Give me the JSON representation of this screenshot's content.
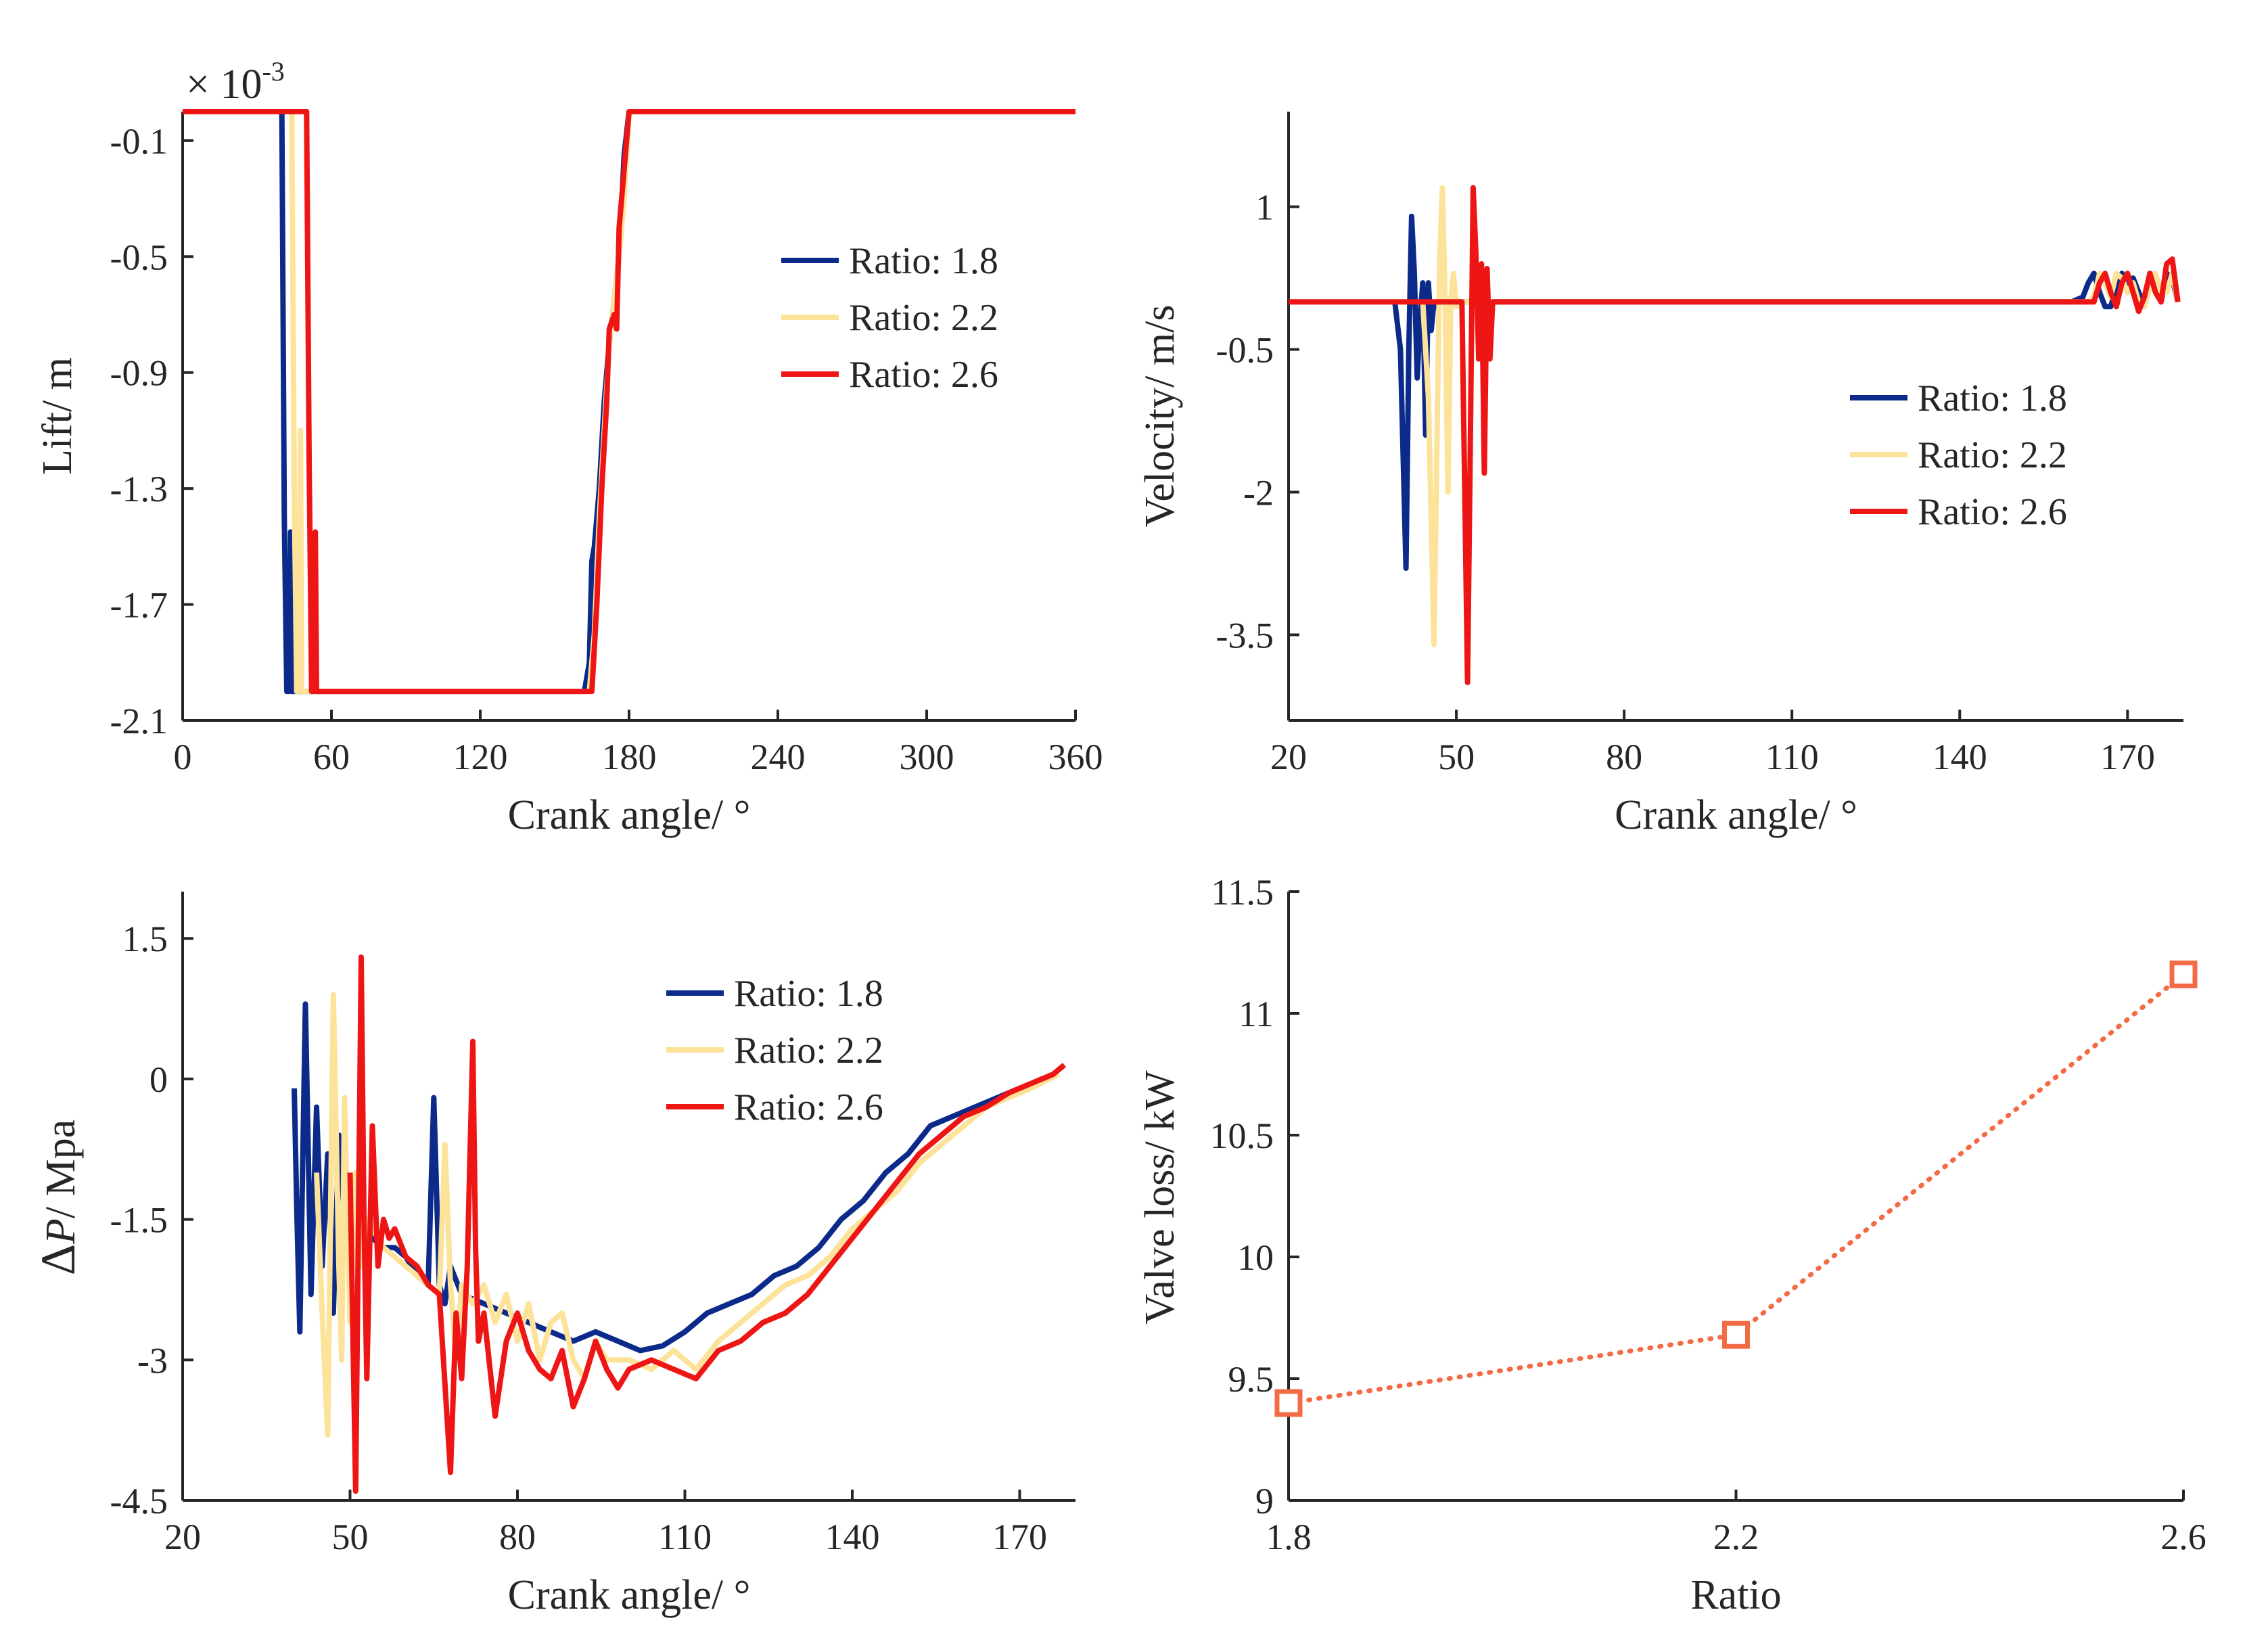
{
  "colors": {
    "r18": "#0b2a8a",
    "r22": "#fde29a",
    "r26": "#ee1515",
    "loss": "#f36b45",
    "axis": "#262626"
  },
  "legend_labels": [
    "Ratio: 1.8",
    "Ratio: 2.2",
    "Ratio: 2.6"
  ],
  "chart_data": [
    {
      "id": "lift",
      "type": "line",
      "xlabel": "Crank angle/ °",
      "ylabel": "Lift/ m",
      "exponent_label": "× 10",
      "exponent_power": "-3",
      "xlim": [
        0,
        360
      ],
      "ylim": [
        -2.1,
        0.0
      ],
      "xticks": [
        "0",
        "60",
        "120",
        "180",
        "240",
        "300",
        "360"
      ],
      "yticks": [
        "-0.1",
        "-0.5",
        "-0.9",
        "-1.3",
        "-1.7",
        "-2.1"
      ],
      "legend_position": "top-right",
      "series": [
        {
          "name": "Ratio: 1.8",
          "color_key": "r18",
          "x": [
            0,
            40,
            41,
            42,
            43,
            43.5,
            44,
            45,
            48,
            160,
            162,
            164,
            165,
            166,
            168,
            170,
            172,
            174,
            176,
            178,
            180,
            360
          ],
          "y": [
            0.0,
            0.0,
            -1.4,
            -2.0,
            -2.0,
            -1.45,
            -2.0,
            -2.0,
            -2.0,
            -2.0,
            -2.0,
            -1.9,
            -1.55,
            -1.5,
            -1.3,
            -1.0,
            -0.8,
            -0.65,
            -0.5,
            -0.15,
            0.0,
            0.0
          ]
        },
        {
          "name": "Ratio: 2.2",
          "color_key": "r22",
          "x": [
            0,
            44,
            45,
            46,
            47,
            47.5,
            48,
            49,
            52,
            162,
            164,
            166,
            168,
            170,
            172,
            174,
            176,
            178,
            180,
            360
          ],
          "y": [
            0.0,
            0.0,
            -1.3,
            -2.0,
            -2.0,
            -1.1,
            -2.0,
            -2.0,
            -2.0,
            -2.0,
            -2.0,
            -1.8,
            -1.4,
            -1.1,
            -0.8,
            -0.65,
            -0.5,
            -0.3,
            0.0,
            0.0
          ]
        },
        {
          "name": "Ratio: 2.6",
          "color_key": "r26",
          "x": [
            0,
            50,
            51,
            52,
            53,
            53.5,
            54,
            55,
            58,
            163,
            165,
            167,
            169,
            171,
            172,
            174,
            175,
            176,
            178,
            180,
            360
          ],
          "y": [
            0.0,
            0.0,
            -1.2,
            -2.0,
            -2.0,
            -1.45,
            -2.0,
            -2.0,
            -2.0,
            -2.0,
            -2.0,
            -1.7,
            -1.3,
            -1.0,
            -0.75,
            -0.7,
            -0.75,
            -0.4,
            -0.2,
            0.0,
            0.0
          ]
        }
      ]
    },
    {
      "id": "velocity",
      "type": "line",
      "xlabel": "Crank angle/ °",
      "ylabel": "Velocity/ m/s",
      "xlim": [
        20,
        180
      ],
      "ylim": [
        -4.4,
        2.0
      ],
      "xticks": [
        "20",
        "50",
        "80",
        "110",
        "140",
        "170"
      ],
      "yticks": [
        "1",
        "-0.5",
        "-2",
        "-3.5"
      ],
      "legend_position": "right",
      "series": [
        {
          "name": "Ratio: 1.8",
          "color_key": "r18",
          "x": [
            39,
            40,
            41,
            41.5,
            42,
            42.5,
            43,
            43.5,
            44,
            44.5,
            45,
            45.5,
            46,
            46.5,
            47,
            48,
            160,
            162,
            163,
            164,
            165,
            166,
            167,
            168,
            169,
            170,
            171,
            172,
            173,
            174,
            175,
            176,
            177,
            178,
            179
          ],
          "y": [
            0.0,
            -0.5,
            -2.8,
            -0.5,
            0.9,
            0.3,
            -0.8,
            -0.2,
            0.2,
            -1.4,
            0.2,
            -0.3,
            0.0,
            -0.05,
            0.0,
            0.0,
            0.0,
            0.05,
            0.2,
            0.3,
            0.1,
            -0.05,
            -0.05,
            0.15,
            0.3,
            0.1,
            0.25,
            0.1,
            -0.05,
            0.3,
            0.2,
            0.0,
            0.3,
            0.25,
            0.0
          ]
        },
        {
          "name": "Ratio: 2.2",
          "color_key": "r22",
          "x": [
            44,
            45,
            46,
            47,
            47.5,
            48,
            48.5,
            49,
            49.5,
            50,
            50.5,
            51,
            52,
            160,
            163,
            164,
            165,
            166,
            167,
            168,
            169,
            170,
            171,
            172,
            173,
            174,
            175,
            176,
            177,
            178,
            179
          ],
          "y": [
            0.0,
            -1.0,
            -3.6,
            0.4,
            1.2,
            0.0,
            -2.0,
            0.0,
            0.3,
            -0.05,
            0.0,
            0.0,
            0.0,
            0.0,
            0.0,
            0.05,
            0.3,
            0.2,
            0.05,
            0.3,
            0.25,
            0.1,
            0.2,
            0.0,
            -0.05,
            0.15,
            0.3,
            0.1,
            0.1,
            0.3,
            0.0
          ]
        },
        {
          "name": "Ratio: 2.6",
          "color_key": "r26",
          "x": [
            20,
            51,
            51.5,
            52,
            52.5,
            53,
            53.5,
            54,
            54.5,
            55,
            55.5,
            56,
            56.5,
            57,
            58,
            164,
            165,
            166,
            167,
            168,
            169,
            170,
            171,
            172,
            173,
            174,
            175,
            176,
            177,
            178,
            179
          ],
          "y": [
            0.0,
            0.0,
            -2.0,
            -4.0,
            -1.5,
            1.2,
            0.5,
            -0.6,
            0.4,
            -1.8,
            0.35,
            -0.6,
            0.0,
            0.0,
            0.0,
            0.0,
            0.2,
            0.3,
            0.1,
            -0.05,
            0.2,
            0.3,
            0.1,
            -0.1,
            0.05,
            0.3,
            0.1,
            0.0,
            0.4,
            0.45,
            0.0
          ]
        }
      ]
    },
    {
      "id": "dp",
      "type": "line",
      "xlabel": "Crank angle/ °",
      "ylabel_prefix": "Δ",
      "ylabel_var": "P",
      "ylabel_suffix": "/ Mpa",
      "xlim": [
        20,
        180
      ],
      "ylim": [
        -4.5,
        2.0
      ],
      "xticks": [
        "20",
        "50",
        "80",
        "110",
        "140",
        "170"
      ],
      "yticks": [
        "1.5",
        "0",
        "-1.5",
        "-3",
        "-4.5"
      ],
      "legend_position": "top-right",
      "series": [
        {
          "name": "Ratio: 1.8",
          "color_key": "r18",
          "x": [
            40,
            40.5,
            41,
            42,
            43,
            44,
            45,
            46,
            47,
            48,
            49,
            50,
            52,
            54,
            56,
            58,
            60,
            62,
            64,
            65,
            66,
            67,
            68,
            70,
            74,
            78,
            82,
            86,
            90,
            94,
            98,
            102,
            106,
            110,
            114,
            118,
            122,
            126,
            130,
            134,
            138,
            142,
            146,
            150,
            154,
            158,
            162,
            166,
            170,
            174,
            177
          ],
          "y": [
            -0.1,
            -1.5,
            -2.7,
            0.8,
            -2.3,
            -0.3,
            -2.0,
            -0.8,
            -2.5,
            -0.6,
            -1.5,
            -1.2,
            -1.4,
            -1.7,
            -1.8,
            -1.8,
            -1.9,
            -2.1,
            -2.2,
            -0.2,
            -2.2,
            -2.4,
            -2.0,
            -2.3,
            -2.4,
            -2.5,
            -2.6,
            -2.7,
            -2.8,
            -2.7,
            -2.8,
            -2.9,
            -2.85,
            -2.7,
            -2.5,
            -2.4,
            -2.3,
            -2.1,
            -2.0,
            -1.8,
            -1.5,
            -1.3,
            -1.0,
            -0.8,
            -0.5,
            -0.4,
            -0.3,
            -0.2,
            -0.1,
            0.0,
            0.05
          ]
        },
        {
          "name": "Ratio: 2.2",
          "color_key": "r22",
          "x": [
            44,
            45,
            46,
            47,
            48,
            48.5,
            49,
            50,
            51,
            52,
            53,
            54,
            56,
            58,
            60,
            62,
            64,
            66,
            67,
            68,
            69,
            70,
            72,
            74,
            76,
            78,
            80,
            82,
            84,
            86,
            88,
            90,
            92,
            94,
            96,
            100,
            104,
            108,
            112,
            116,
            120,
            124,
            128,
            132,
            136,
            140,
            144,
            148,
            152,
            156,
            160,
            164,
            168,
            172,
            177
          ],
          "y": [
            -1.0,
            -2.5,
            -3.8,
            0.9,
            -2.0,
            -3.0,
            -0.2,
            -2.6,
            -1.0,
            -2.0,
            -1.5,
            -1.6,
            -1.8,
            -1.9,
            -2.0,
            -2.1,
            -2.2,
            -2.3,
            -0.7,
            -2.2,
            -3.0,
            -2.2,
            -2.4,
            -2.2,
            -2.6,
            -2.3,
            -2.8,
            -2.4,
            -3.0,
            -2.6,
            -2.5,
            -3.0,
            -3.2,
            -2.8,
            -3.0,
            -3.0,
            -3.1,
            -2.9,
            -3.1,
            -2.8,
            -2.6,
            -2.4,
            -2.2,
            -2.1,
            -1.9,
            -1.6,
            -1.4,
            -1.2,
            -0.9,
            -0.7,
            -0.5,
            -0.3,
            -0.2,
            -0.1,
            0.05
          ]
        },
        {
          "name": "Ratio: 2.6",
          "color_key": "r26",
          "x": [
            50,
            51,
            52,
            52.5,
            53,
            54,
            55,
            56,
            57,
            58,
            60,
            62,
            64,
            66,
            68,
            69,
            70,
            71,
            72,
            72.5,
            73,
            74,
            76,
            78,
            80,
            82,
            84,
            86,
            88,
            90,
            92,
            94,
            96,
            98,
            100,
            104,
            108,
            112,
            116,
            120,
            124,
            128,
            132,
            136,
            140,
            144,
            148,
            152,
            156,
            160,
            164,
            168,
            172,
            176,
            178
          ],
          "y": [
            -1.0,
            -4.4,
            1.3,
            -1.5,
            -3.2,
            -0.5,
            -2.0,
            -1.5,
            -1.7,
            -1.6,
            -1.9,
            -2.0,
            -2.2,
            -2.3,
            -4.2,
            -2.5,
            -3.2,
            -2.0,
            0.4,
            -1.8,
            -2.8,
            -2.5,
            -3.6,
            -2.8,
            -2.5,
            -2.9,
            -3.1,
            -3.2,
            -2.9,
            -3.5,
            -3.2,
            -2.8,
            -3.1,
            -3.3,
            -3.1,
            -3.0,
            -3.1,
            -3.2,
            -2.9,
            -2.8,
            -2.6,
            -2.5,
            -2.3,
            -2.0,
            -1.7,
            -1.4,
            -1.1,
            -0.8,
            -0.6,
            -0.4,
            -0.3,
            -0.15,
            -0.05,
            0.05,
            0.15
          ]
        }
      ]
    },
    {
      "id": "valveloss",
      "type": "line",
      "xlabel": "Ratio",
      "ylabel": "Valve loss/ kW",
      "xlim": [
        1.8,
        2.6
      ],
      "ylim": [
        9,
        11.5
      ],
      "xticks": [
        "1.8",
        "2.2",
        "2.6"
      ],
      "yticks": [
        "11.5",
        "11",
        "10.5",
        "10",
        "9.5",
        "9"
      ],
      "series": [
        {
          "name": "Valve loss",
          "color_key": "loss",
          "marker": "square",
          "line_style": "dotted",
          "x": [
            1.8,
            2.2,
            2.6
          ],
          "y": [
            9.4,
            9.68,
            11.16
          ]
        }
      ]
    }
  ]
}
